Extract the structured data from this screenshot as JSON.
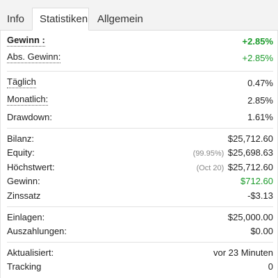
{
  "tabs": {
    "info": "Info",
    "stats": "Statistiken",
    "general": "Allgemein"
  },
  "stats": {
    "gewinn_label": "Gewinn :",
    "gewinn_value": "+2.85%",
    "abs_gewinn_label": "Abs. Gewinn:",
    "abs_gewinn_value": "+2.85%",
    "taeglich_label": "Täglich",
    "taeglich_value": "0.47%",
    "monatlich_label": "Monatlich:",
    "monatlich_value": "2.85%",
    "drawdown_label": "Drawdown:",
    "drawdown_value": "1.61%",
    "bilanz_label": "Bilanz:",
    "bilanz_value": "$25,712.60",
    "equity_label": "Equity:",
    "equity_note": "(99.95%)",
    "equity_value": "$25,698.63",
    "hoechstwert_label": "Höchstwert:",
    "hoechstwert_note": "(Oct 20)",
    "hoechstwert_value": "$25,712.60",
    "gewinn2_label": "Gewinn:",
    "gewinn2_value": "$712.60",
    "zinssatz_label": "Zinssatz",
    "zinssatz_value": "-$3.13",
    "einlagen_label": "Einlagen:",
    "einlagen_value": "$25,000.00",
    "auszahlungen_label": "Auszahlungen:",
    "auszahlungen_value": "$0.00",
    "aktualisiert_label": "Aktualisiert:",
    "aktualisiert_value": "vor 23 Minuten",
    "tracking_label": "Tracking",
    "tracking_value": "0"
  },
  "colors": {
    "positive": "#1a9a2a",
    "note": "#888888"
  }
}
